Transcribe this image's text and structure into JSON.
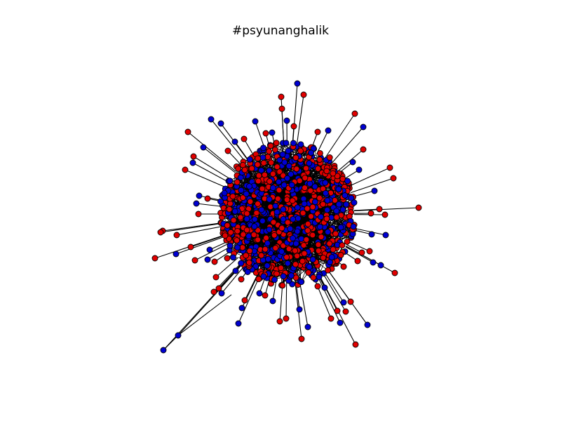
{
  "title": "#psyunanghalik",
  "colors": {
    "background": "#ffffff",
    "node_red": "#e00000",
    "node_blue": "#0000d0",
    "node_outline": "#000000",
    "edge": "#000000"
  },
  "graph": {
    "node_color_groups": [
      "red",
      "blue"
    ]
  }
}
